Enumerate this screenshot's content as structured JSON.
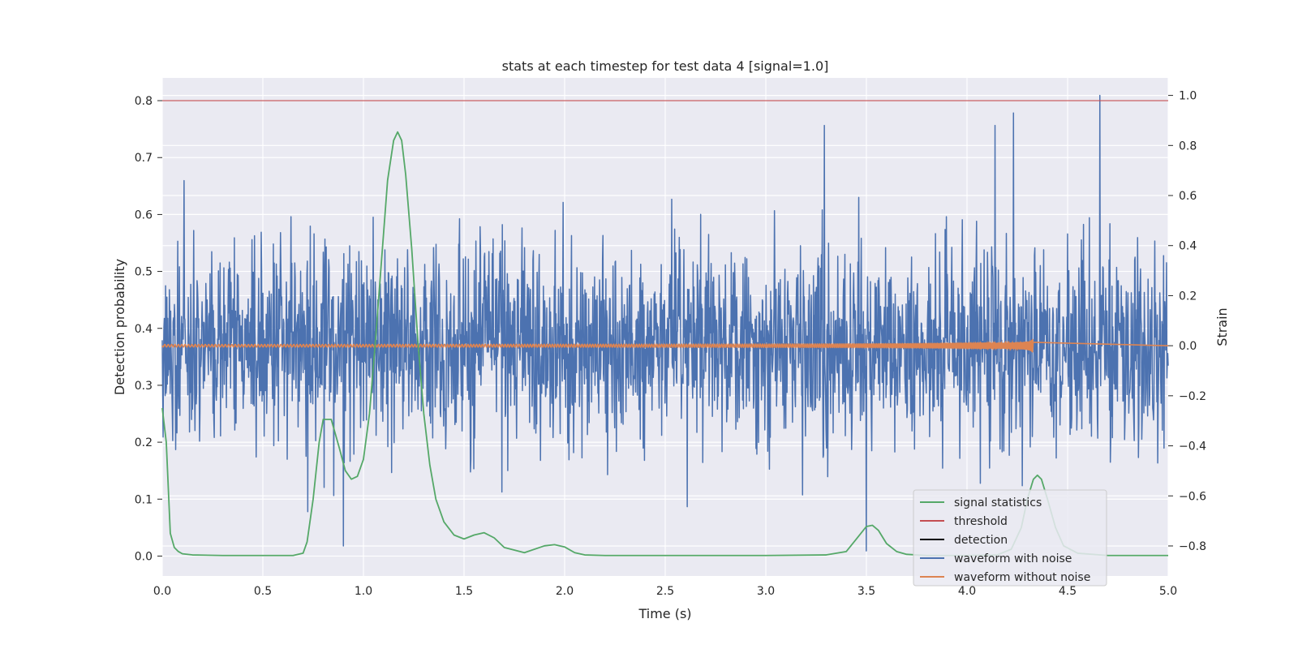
{
  "chart_data": {
    "type": "line",
    "title": "stats at each timestep for test data 4 [signal=1.0]",
    "xlabel": "Time (s)",
    "ylabel": "Detection probability",
    "ylabel_right": "Strain",
    "xlim": [
      0.0,
      5.0
    ],
    "ylim": [
      -0.035,
      0.84
    ],
    "ylim_right": [
      -0.92,
      1.07
    ],
    "x_ticks": [
      "0.0",
      "0.5",
      "1.0",
      "1.5",
      "2.0",
      "2.5",
      "3.0",
      "3.5",
      "4.0",
      "4.5",
      "5.0"
    ],
    "y_ticks": [
      "0.0",
      "0.1",
      "0.2",
      "0.3",
      "0.4",
      "0.5",
      "0.6",
      "0.7",
      "0.8"
    ],
    "y_ticks_right": [
      "−0.8",
      "−0.6",
      "−0.4",
      "−0.2",
      "0.0",
      "0.2",
      "0.4",
      "0.6",
      "0.8",
      "1.0"
    ],
    "grid": true,
    "legend_position": "lower-right",
    "colors": {
      "signal_statistics": "#55a868",
      "threshold": "#c44e52",
      "detection": "#000000",
      "waveform_with_noise": "#4c72b0",
      "waveform_without_noise": "#dd8452",
      "plot_background": "#eaeaf2"
    },
    "series": [
      {
        "name": "signal statistics",
        "axis": "left",
        "x": [
          0.0,
          0.02,
          0.04,
          0.06,
          0.08,
          0.1,
          0.15,
          0.3,
          0.5,
          0.65,
          0.7,
          0.72,
          0.75,
          0.78,
          0.8,
          0.84,
          0.88,
          0.91,
          0.94,
          0.97,
          1.0,
          1.03,
          1.06,
          1.09,
          1.12,
          1.15,
          1.17,
          1.19,
          1.21,
          1.24,
          1.27,
          1.3,
          1.33,
          1.36,
          1.4,
          1.45,
          1.5,
          1.55,
          1.6,
          1.65,
          1.7,
          1.8,
          1.9,
          1.95,
          2.0,
          2.05,
          2.1,
          2.2,
          2.5,
          3.0,
          3.3,
          3.4,
          3.45,
          3.5,
          3.53,
          3.56,
          3.6,
          3.65,
          3.7,
          3.8,
          4.0,
          4.15,
          4.22,
          4.27,
          4.3,
          4.33,
          4.35,
          4.37,
          4.4,
          4.44,
          4.48,
          4.55,
          4.7,
          5.0
        ],
        "y": [
          0.26,
          0.2,
          0.04,
          0.015,
          0.008,
          0.004,
          0.002,
          0.001,
          0.001,
          0.001,
          0.005,
          0.025,
          0.1,
          0.2,
          0.24,
          0.24,
          0.19,
          0.15,
          0.135,
          0.14,
          0.17,
          0.25,
          0.38,
          0.52,
          0.66,
          0.73,
          0.745,
          0.73,
          0.67,
          0.54,
          0.38,
          0.25,
          0.16,
          0.1,
          0.06,
          0.037,
          0.03,
          0.037,
          0.041,
          0.032,
          0.015,
          0.006,
          0.018,
          0.02,
          0.016,
          0.006,
          0.002,
          0.001,
          0.001,
          0.001,
          0.002,
          0.008,
          0.03,
          0.052,
          0.054,
          0.045,
          0.022,
          0.008,
          0.003,
          0.001,
          0.001,
          0.002,
          0.012,
          0.05,
          0.1,
          0.135,
          0.142,
          0.135,
          0.1,
          0.05,
          0.018,
          0.005,
          0.001,
          0.001
        ]
      },
      {
        "name": "threshold",
        "axis": "left",
        "x": [
          0.0,
          5.0
        ],
        "y": [
          0.8,
          0.8
        ]
      },
      {
        "name": "detection",
        "axis": "left",
        "x": [],
        "y": []
      },
      {
        "name": "waveform with noise",
        "axis": "right",
        "x_range": [
          0.0,
          5.0
        ],
        "samples": 2400,
        "std": 0.2,
        "min": -0.82,
        "max": 1.0,
        "peaks": [
          {
            "x": 0.9,
            "y": -0.8
          },
          {
            "x": 3.29,
            "y": 0.88
          },
          {
            "x": 3.5,
            "y": -0.82
          },
          {
            "x": 4.14,
            "y": 0.88
          },
          {
            "x": 4.23,
            "y": 0.93
          },
          {
            "x": 4.66,
            "y": 1.0
          }
        ]
      },
      {
        "name": "waveform without noise",
        "axis": "right",
        "x_range": [
          0.0,
          4.33
        ],
        "amplitude_start": 0.005,
        "amplitude_peak": 0.08,
        "merger_time": 4.33,
        "after_merger": 0.0
      }
    ]
  }
}
